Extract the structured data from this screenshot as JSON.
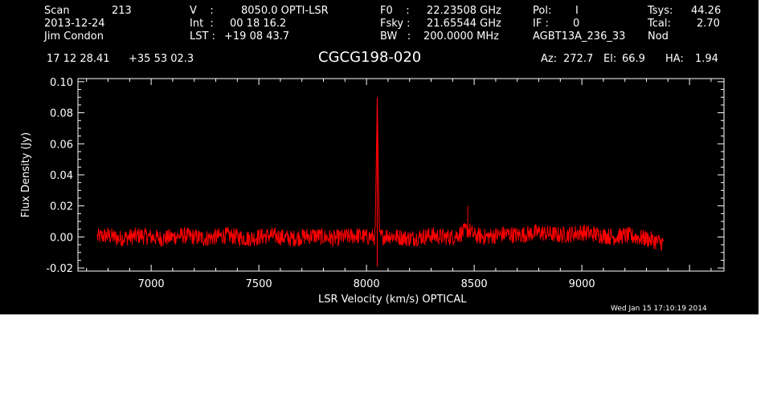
{
  "header": {
    "scan_label": "Scan",
    "scan_value": "213",
    "date": "2013-12-24",
    "observer": "Jim Condon",
    "v_label": "V    :",
    "v_value": "8050.0 OPTI-LSR",
    "int_label": "Int  :",
    "int_value": "00 18 16.2",
    "lst_label": "LST :",
    "lst_value": "+19 08 43.7",
    "f0_label": "F0    :",
    "f0_value": "22.23508 GHz",
    "fsky_label": "Fsky :",
    "fsky_value": "21.65544 GHz",
    "bw_label": "BW   :",
    "bw_value": "200.0000 MHz",
    "pol_label": "Pol:",
    "pol_value": "I",
    "if_label": "IF :",
    "if_value": "0",
    "project": "AGBT13A_236_33",
    "tsys_label": "Tsys:",
    "tsys_value": "44.26",
    "tcal_label": "Tcal:",
    "tcal_value": "2.70",
    "mode": "Nod",
    "ra": "17 12 28.41",
    "dec": "+35 53 02.3",
    "source": "CGCG198-020",
    "az_label": "Az:",
    "az_value": "272.7",
    "el_label": "El:",
    "el_value": "66.9",
    "ha_label": "HA:",
    "ha_value": "1.94",
    "timestamp": "Wed Jan 15 17:10:19 2014"
  },
  "colors": {
    "background": "#000000",
    "axes": "#ffffff",
    "trace": "#ff0000"
  },
  "chart_data": {
    "type": "line",
    "xlabel": "LSR Velocity (km/s) OPTICAL",
    "ylabel": "Flux Density (Jy)",
    "xlim": [
      6660,
      9660
    ],
    "ylim": [
      -0.022,
      0.102
    ],
    "xticks": [
      7000,
      7500,
      8000,
      8500,
      9000
    ],
    "xtick_labels": [
      "7000",
      "7500",
      "8000",
      "8500",
      "9000"
    ],
    "yticks": [
      -0.02,
      0.0,
      0.02,
      0.04,
      0.06,
      0.08,
      0.1
    ],
    "ytick_labels": [
      "-0.02",
      "0.00",
      "0.02",
      "0.04",
      "0.06",
      "0.08",
      "0.10"
    ],
    "grid": false,
    "series": [
      {
        "color": "#ff0000",
        "x": [
          6750,
          6800,
          6850,
          6900,
          6950,
          7000,
          7050,
          7100,
          7150,
          7200,
          7250,
          7300,
          7350,
          7400,
          7450,
          7500,
          7550,
          7600,
          7650,
          7700,
          7750,
          7800,
          7850,
          7900,
          7950,
          8000,
          8040,
          8050,
          8060,
          8100,
          8150,
          8200,
          8250,
          8300,
          8350,
          8400,
          8450,
          8470,
          8500,
          8550,
          8600,
          8650,
          8700,
          8750,
          8800,
          8850,
          8900,
          8950,
          9000,
          9050,
          9100,
          9150,
          9200,
          9250,
          9300,
          9350,
          9380
        ],
        "y": [
          0.0,
          0.001,
          -0.001,
          0.0,
          0.001,
          0.0,
          -0.001,
          0.0,
          0.001,
          0.0,
          -0.001,
          0.0,
          0.001,
          0.0,
          -0.001,
          0.0,
          0.001,
          0.0,
          -0.001,
          0.0,
          0.001,
          0.0,
          -0.001,
          0.0,
          0.001,
          0.0,
          0.0,
          0.09,
          0.0,
          0.001,
          0.0,
          -0.001,
          0.0,
          0.001,
          0.0,
          0.0,
          0.003,
          0.005,
          0.001,
          0.0,
          0.001,
          0.002,
          0.001,
          0.002,
          0.003,
          0.002,
          0.001,
          0.002,
          0.003,
          0.002,
          0.001,
          0.0,
          0.001,
          0.0,
          -0.001,
          -0.003,
          -0.004
        ]
      }
    ]
  }
}
